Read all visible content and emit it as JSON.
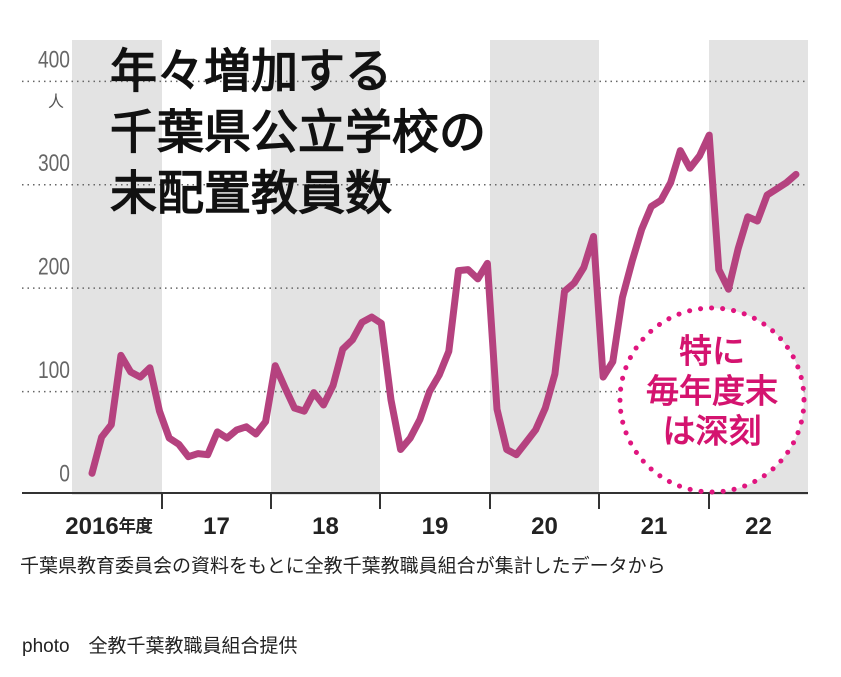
{
  "chart_data": {
    "type": "line",
    "title_lines": [
      "年々増加する",
      "千葉県公立学校の",
      "未配置教員数"
    ],
    "unit": "人",
    "year_labels": [
      "2016",
      "17",
      "18",
      "19",
      "20",
      "21",
      "22"
    ],
    "year_suffix": "年度",
    "series": [
      {
        "color": "#b5427f",
        "values": [
          21,
          56,
          68,
          135,
          119,
          114,
          123,
          81,
          55,
          49,
          37,
          40,
          39,
          61,
          55,
          63,
          66,
          59,
          71,
          125,
          104,
          84,
          81,
          99,
          87,
          106,
          141,
          150,
          167,
          172,
          166,
          92,
          44,
          55,
          73,
          100,
          116,
          139,
          217,
          218,
          209,
          224,
          83,
          44,
          39,
          51,
          63,
          84,
          117,
          197,
          205,
          220,
          250,
          114,
          129,
          191,
          226,
          257,
          279,
          285,
          302,
          333,
          316,
          328,
          348,
          218,
          199,
          238,
          269,
          265,
          290,
          296,
          302,
          310
        ]
      }
    ],
    "ylim": [
      0,
      440
    ],
    "yticks": [
      0,
      100,
      200,
      300,
      400
    ],
    "grid": true,
    "annotation_lines": [
      "特に",
      "毎年度末",
      "は深刻"
    ],
    "source": "千葉県教育委員会の資料をもとに全教千葉教職員組合が集計したデータから",
    "photo_credit": "photo　全教千葉教職員組合提供"
  }
}
